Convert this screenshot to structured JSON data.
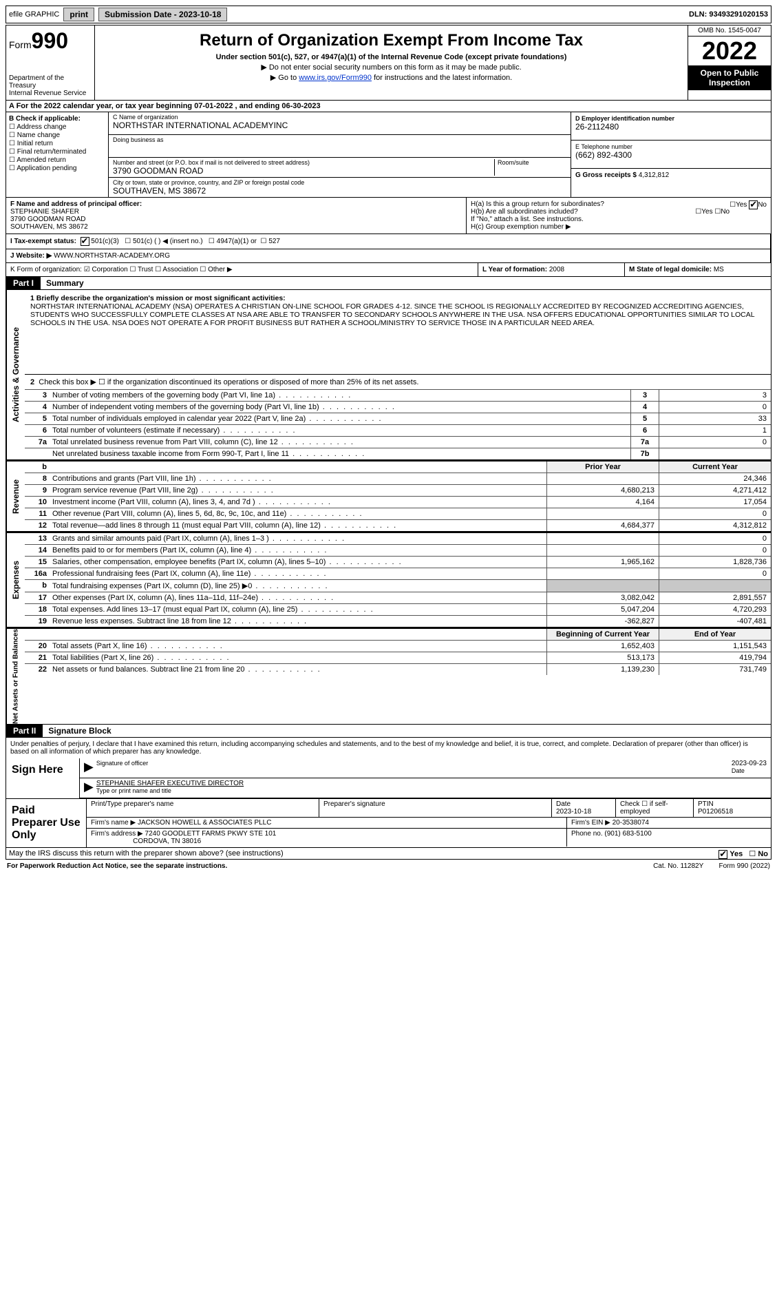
{
  "topbar": {
    "efile": "efile GRAPHIC",
    "print": "print",
    "submission_label": "Submission Date - 2023-10-18",
    "dln": "DLN: 93493291020153"
  },
  "header": {
    "form_prefix": "Form",
    "form_number": "990",
    "dept": "Department of the Treasury",
    "irs": "Internal Revenue Service",
    "title": "Return of Organization Exempt From Income Tax",
    "subtitle": "Under section 501(c), 527, or 4947(a)(1) of the Internal Revenue Code (except private foundations)",
    "note1": "▶ Do not enter social security numbers on this form as it may be made public.",
    "note2_pre": "▶ Go to ",
    "note2_link": "www.irs.gov/Form990",
    "note2_post": " for instructions and the latest information.",
    "omb": "OMB No. 1545-0047",
    "year": "2022",
    "open": "Open to Public Inspection"
  },
  "row_a": "A For the 2022 calendar year, or tax year beginning 07-01-2022   , and ending 06-30-2023",
  "box_b": {
    "label": "B Check if applicable:",
    "opts": [
      "Address change",
      "Name change",
      "Initial return",
      "Final return/terminated",
      "Amended return",
      "Application pending"
    ]
  },
  "box_c": {
    "name_lbl": "C Name of organization",
    "name": "NORTHSTAR INTERNATIONAL ACADEMYINC",
    "dba_lbl": "Doing business as",
    "dba": "",
    "street_lbl": "Number and street (or P.O. box if mail is not delivered to street address)",
    "street": "3790 GOODMAN ROAD",
    "room_lbl": "Room/suite",
    "city_lbl": "City or town, state or province, country, and ZIP or foreign postal code",
    "city": "SOUTHAVEN, MS  38672"
  },
  "box_d": {
    "lbl": "D Employer identification number",
    "val": "26-2112480"
  },
  "box_e": {
    "lbl": "E Telephone number",
    "val": "(662) 892-4300"
  },
  "box_g": {
    "lbl": "G Gross receipts $",
    "val": "4,312,812"
  },
  "box_f": {
    "lbl": "F  Name and address of principal officer:",
    "name": "STEPHANIE SHAFER",
    "addr1": "3790 GOODMAN ROAD",
    "addr2": "SOUTHAVEN, MS  38672"
  },
  "box_h": {
    "a": "H(a)  Is this a group return for subordinates?",
    "a_yes": "Yes",
    "a_no": "No",
    "b": "H(b)  Are all subordinates included?",
    "b_yes": "Yes",
    "b_no": "No",
    "b_note": "If \"No,\" attach a list. See instructions.",
    "c": "H(c)  Group exemption number ▶"
  },
  "box_i": {
    "lbl": "I   Tax-exempt status:",
    "o1": "501(c)(3)",
    "o2": "501(c) (  ) ◀ (insert no.)",
    "o3": "4947(a)(1) or",
    "o4": "527"
  },
  "box_j": {
    "lbl": "J   Website: ▶",
    "val": "WWW.NORTHSTAR-ACADEMY.ORG"
  },
  "box_k": "K Form of organization:   ☑ Corporation  ☐ Trust  ☐ Association  ☐ Other ▶",
  "box_l": {
    "lbl": "L Year of formation:",
    "val": "2008"
  },
  "box_m": {
    "lbl": "M State of legal domicile:",
    "val": "MS"
  },
  "part1": {
    "hdr": "Part I",
    "title": "Summary"
  },
  "mission_lbl": "1  Briefly describe the organization's mission or most significant activities:",
  "mission": "NORTHSTAR INTERNATIONAL ACADEMY (NSA) OPERATES A CHRISTIAN ON-LINE SCHOOL FOR GRADES 4-12. SINCE THE SCHOOL IS REGIONALLY ACCREDITED BY RECOGNIZED ACCREDITING AGENCIES, STUDENTS WHO SUCCESSFULLY COMPLETE CLASSES AT NSA ARE ABLE TO TRANSFER TO SECONDARY SCHOOLS ANYWHERE IN THE USA. NSA OFFERS EDUCATIONAL OPPORTUNITIES SIMILAR TO LOCAL SCHOOLS IN THE USA. NSA DOES NOT OPERATE A FOR PROFIT BUSINESS BUT RATHER A SCHOOL/MINISTRY TO SERVICE THOSE IN A PARTICULAR NEED AREA.",
  "line2": "Check this box ▶ ☐  if the organization discontinued its operations or disposed of more than 25% of its net assets.",
  "governance": [
    {
      "n": "3",
      "t": "Number of voting members of the governing body (Part VI, line 1a)",
      "b": "3",
      "v": "3"
    },
    {
      "n": "4",
      "t": "Number of independent voting members of the governing body (Part VI, line 1b)",
      "b": "4",
      "v": "0"
    },
    {
      "n": "5",
      "t": "Total number of individuals employed in calendar year 2022 (Part V, line 2a)",
      "b": "5",
      "v": "33"
    },
    {
      "n": "6",
      "t": "Total number of volunteers (estimate if necessary)",
      "b": "6",
      "v": "1"
    },
    {
      "n": "7a",
      "t": "Total unrelated business revenue from Part VIII, column (C), line 12",
      "b": "7a",
      "v": "0"
    },
    {
      "n": "",
      "t": "Net unrelated business taxable income from Form 990-T, Part I, line 11",
      "b": "7b",
      "v": ""
    }
  ],
  "col_hdrs": {
    "prior": "Prior Year",
    "current": "Current Year"
  },
  "revenue": [
    {
      "n": "8",
      "t": "Contributions and grants (Part VIII, line 1h)",
      "p": "",
      "c": "24,346"
    },
    {
      "n": "9",
      "t": "Program service revenue (Part VIII, line 2g)",
      "p": "4,680,213",
      "c": "4,271,412"
    },
    {
      "n": "10",
      "t": "Investment income (Part VIII, column (A), lines 3, 4, and 7d )",
      "p": "4,164",
      "c": "17,054"
    },
    {
      "n": "11",
      "t": "Other revenue (Part VIII, column (A), lines 5, 6d, 8c, 9c, 10c, and 11e)",
      "p": "",
      "c": "0"
    },
    {
      "n": "12",
      "t": "Total revenue—add lines 8 through 11 (must equal Part VIII, column (A), line 12)",
      "p": "4,684,377",
      "c": "4,312,812"
    }
  ],
  "expenses": [
    {
      "n": "13",
      "t": "Grants and similar amounts paid (Part IX, column (A), lines 1–3 )",
      "p": "",
      "c": "0"
    },
    {
      "n": "14",
      "t": "Benefits paid to or for members (Part IX, column (A), line 4)",
      "p": "",
      "c": "0"
    },
    {
      "n": "15",
      "t": "Salaries, other compensation, employee benefits (Part IX, column (A), lines 5–10)",
      "p": "1,965,162",
      "c": "1,828,736"
    },
    {
      "n": "16a",
      "t": "Professional fundraising fees (Part IX, column (A), line 11e)",
      "p": "",
      "c": "0"
    },
    {
      "n": "b",
      "t": "Total fundraising expenses (Part IX, column (D), line 25) ▶0",
      "p": "shade",
      "c": "shade"
    },
    {
      "n": "17",
      "t": "Other expenses (Part IX, column (A), lines 11a–11d, 11f–24e)",
      "p": "3,082,042",
      "c": "2,891,557"
    },
    {
      "n": "18",
      "t": "Total expenses. Add lines 13–17 (must equal Part IX, column (A), line 25)",
      "p": "5,047,204",
      "c": "4,720,293"
    },
    {
      "n": "19",
      "t": "Revenue less expenses. Subtract line 18 from line 12",
      "p": "-362,827",
      "c": "-407,481"
    }
  ],
  "net_hdrs": {
    "begin": "Beginning of Current Year",
    "end": "End of Year"
  },
  "netassets": [
    {
      "n": "20",
      "t": "Total assets (Part X, line 16)",
      "p": "1,652,403",
      "c": "1,151,543"
    },
    {
      "n": "21",
      "t": "Total liabilities (Part X, line 26)",
      "p": "513,173",
      "c": "419,794"
    },
    {
      "n": "22",
      "t": "Net assets or fund balances. Subtract line 21 from line 20",
      "p": "1,139,230",
      "c": "731,749"
    }
  ],
  "vtabs": {
    "gov": "Activities & Governance",
    "rev": "Revenue",
    "exp": "Expenses",
    "net": "Net Assets or Fund Balances"
  },
  "part2": {
    "hdr": "Part II",
    "title": "Signature Block"
  },
  "sig_note": "Under penalties of perjury, I declare that I have examined this return, including accompanying schedules and statements, and to the best of my knowledge and belief, it is true, correct, and complete. Declaration of preparer (other than officer) is based on all information of which preparer has any knowledge.",
  "sign": {
    "label": "Sign Here",
    "officer_lbl": "Signature of officer",
    "date_lbl": "Date",
    "date": "2023-09-23",
    "name": "STEPHANIE SHAFER EXECUTIVE DIRECTOR",
    "name_lbl": "Type or print name and title"
  },
  "prep": {
    "label": "Paid Preparer Use Only",
    "h1": "Print/Type preparer's name",
    "h2": "Preparer's signature",
    "h3": "Date",
    "h4": "Check ☐ if self-employed",
    "h5": "PTIN",
    "date": "2023-10-18",
    "ptin": "P01206518",
    "firm_lbl": "Firm's name    ▶",
    "firm": "JACKSON HOWELL & ASSOCIATES PLLC",
    "ein_lbl": "Firm's EIN ▶",
    "ein": "20-3538074",
    "addr_lbl": "Firm's address ▶",
    "addr1": "7240 GOODLETT FARMS PKWY STE 101",
    "addr2": "CORDOVA, TN  38016",
    "phone_lbl": "Phone no.",
    "phone": "(901) 683-5100"
  },
  "discuss": "May the IRS discuss this return with the preparer shown above? (see instructions)",
  "discuss_yes": "Yes",
  "discuss_no": "No",
  "footer": {
    "left": "For Paperwork Reduction Act Notice, see the separate instructions.",
    "mid": "Cat. No. 11282Y",
    "right": "Form 990 (2022)"
  }
}
